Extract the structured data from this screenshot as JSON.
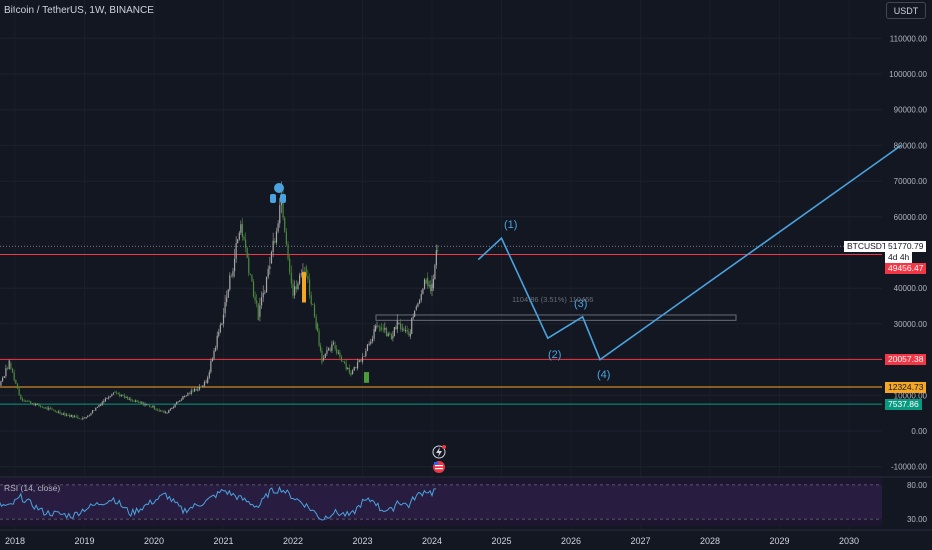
{
  "header": {
    "symbol_title": "Bitcoin / TetherUS, 1W, BINANCE",
    "currency_button": "USDT"
  },
  "price_axis": {
    "ticks": [
      {
        "label": "110000.00",
        "value": 110000
      },
      {
        "label": "100000.00",
        "value": 100000
      },
      {
        "label": "90000.00",
        "value": 90000
      },
      {
        "label": "80000.00",
        "value": 80000
      },
      {
        "label": "70000.00",
        "value": 70000
      },
      {
        "label": "60000.00",
        "value": 60000
      },
      {
        "label": "40000.00",
        "value": 40000
      },
      {
        "label": "30000.00",
        "value": 30000
      },
      {
        "label": "10000.00",
        "value": 10000
      },
      {
        "label": "0.00",
        "value": 0
      },
      {
        "label": "-10000.00",
        "value": -10000
      }
    ],
    "badges": {
      "symbol": "BTCUSDT",
      "last_price": "51770.79",
      "countdown": "4d 4h",
      "level_1": "49456.47",
      "level_2": "20057.38",
      "level_3": "12324.73",
      "level_4": "7537.86"
    }
  },
  "time_axis": {
    "ticks": [
      {
        "label": "2018",
        "year": 2018
      },
      {
        "label": "2019",
        "year": 2019
      },
      {
        "label": "2020",
        "year": 2020
      },
      {
        "label": "2021",
        "year": 2021
      },
      {
        "label": "2022",
        "year": 2022
      },
      {
        "label": "2023",
        "year": 2023
      },
      {
        "label": "2024",
        "year": 2024
      },
      {
        "label": "2025",
        "year": 2025
      },
      {
        "label": "2026",
        "year": 2026
      },
      {
        "label": "2027",
        "year": 2027
      },
      {
        "label": "2028",
        "year": 2028
      },
      {
        "label": "2029",
        "year": 2029
      },
      {
        "label": "2030",
        "year": 2030
      }
    ]
  },
  "levels": [
    {
      "price": 49456.47,
      "color": "#f23645"
    },
    {
      "price": 20057.38,
      "color": "#f23645"
    },
    {
      "price": 12324.73,
      "color": "#f5a623"
    },
    {
      "price": 7537.86,
      "color": "#089981"
    }
  ],
  "chart_data": {
    "type": "line",
    "title": "Bitcoin / TetherUS, 1W, BINANCE",
    "y_range": [
      -12000,
      112000
    ],
    "x_range": [
      "2017-12",
      "2030-10"
    ],
    "series": [
      {
        "x": [
          "2017-08",
          "2017-12",
          "2018-02",
          "2018-06",
          "2018-11",
          "2019-01",
          "2019-06",
          "2019-09",
          "2019-12",
          "2020-03",
          "2020-06",
          "2020-10",
          "2021-01",
          "2021-04",
          "2021-07",
          "2021-09",
          "2021-11",
          "2022-01",
          "2022-03",
          "2022-05",
          "2022-06",
          "2022-08",
          "2022-11",
          "2023-01",
          "2023-03",
          "2023-04",
          "2023-06",
          "2023-07",
          "2023-09",
          "2023-10",
          "2023-12",
          "2024-01",
          "2024-02"
        ],
        "values": [
          4300,
          19000,
          9000,
          6500,
          4000,
          3500,
          11000,
          8500,
          7200,
          5000,
          9500,
          13500,
          33000,
          58000,
          32000,
          47000,
          66000,
          38000,
          46000,
          30000,
          20000,
          24000,
          16000,
          21000,
          28000,
          29000,
          26000,
          30000,
          26500,
          34000,
          43000,
          40000,
          51770
        ]
      },
      {
        "x": [
          "2024-09",
          "2025-01",
          "2025-09",
          "2026-03",
          "2026-06",
          "2030-10"
        ],
        "values": [
          48000,
          54000,
          26000,
          32000,
          20000,
          80000
        ]
      }
    ],
    "wave_labels": [
      "(1)",
      "(2)",
      "(3)",
      "(4)"
    ],
    "measure_label": "1104.86 (3.51%) 110466",
    "rsi": {
      "label": "RSI (14, close)",
      "ticks": [
        {
          "label": "80.00",
          "value": 80
        },
        {
          "label": "30.00",
          "value": 30
        }
      ],
      "values": [
        55,
        48,
        62,
        40,
        35,
        45,
        60,
        38,
        52,
        66,
        42,
        56,
        72,
        60,
        48,
        70,
        74,
        62,
        52,
        38,
        30,
        40,
        35,
        55,
        58,
        45,
        42,
        56,
        50,
        62,
        72,
        68,
        78
      ]
    }
  }
}
